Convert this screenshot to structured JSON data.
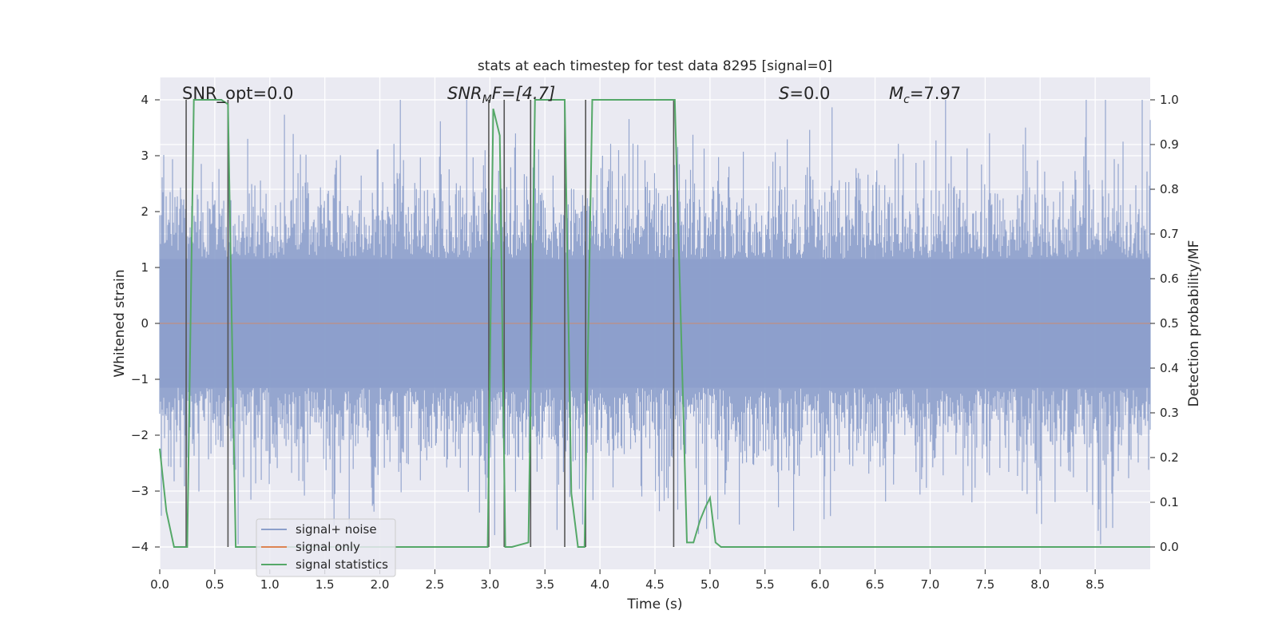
{
  "chart_data": {
    "type": "line",
    "title": "stats at each timestep for test data 8295 [signal=0]",
    "xlabel": "Time (s)",
    "ylabel": "Whitened strain",
    "y2label": "Detection probability/MF",
    "xlim": [
      0.0,
      9.0
    ],
    "ylim": [
      -4.4,
      4.4
    ],
    "y2lim": [
      -0.05,
      1.05
    ],
    "xticks": [
      "0.0",
      "0.5",
      "1.0",
      "1.5",
      "2.0",
      "2.5",
      "3.0",
      "3.5",
      "4.0",
      "4.5",
      "5.0",
      "5.5",
      "6.0",
      "6.5",
      "7.0",
      "7.5",
      "8.0",
      "8.5"
    ],
    "yticks": [
      "4",
      "3",
      "2",
      "1",
      "0",
      "−1",
      "−2",
      "−3",
      "−4"
    ],
    "y2ticks": [
      "1.0",
      "0.9",
      "0.8",
      "0.7",
      "0.6",
      "0.5",
      "0.4",
      "0.3",
      "0.2",
      "0.1",
      "0.0"
    ],
    "grid": true,
    "legend_position": "lower-left",
    "legend": [
      {
        "label": "signal+ noise",
        "color": "#8c9fcb"
      },
      {
        "label": "signal only",
        "color": "#dd8452"
      },
      {
        "label": "signal statistics",
        "color": "#55a868"
      }
    ],
    "annotations": {
      "snr_opt": "SNR_opt=0.0",
      "snr_mf_main": "SNR",
      "snr_mf_sub": "M",
      "snr_mf_rest": "F=[4.7]",
      "s_main": "S",
      "s_rest": "=0.0",
      "mc_main": "M",
      "mc_sub": "c",
      "mc_rest": "=7.97"
    },
    "series": [
      {
        "name": "signal+ noise",
        "color": "#8c9fcb",
        "description": "whitened strain noise band, approx -4 to 4",
        "seed": 8295,
        "duration": 9.0
      },
      {
        "name": "signal only",
        "color": "#dd8452",
        "x": [
          0.0,
          9.0
        ],
        "y": [
          0.0,
          0.0
        ]
      },
      {
        "name": "signal statistics",
        "color": "#55a868",
        "axis": "right",
        "x": [
          0.0,
          0.06,
          0.13,
          0.19,
          0.25,
          0.31,
          0.38,
          0.5,
          0.56,
          0.62,
          0.69,
          0.75,
          1.0,
          2.0,
          2.98,
          3.03,
          3.09,
          3.14,
          3.2,
          3.35,
          3.41,
          3.47,
          3.68,
          3.74,
          3.8,
          3.86,
          3.93,
          4.0,
          4.68,
          4.73,
          4.79,
          4.85,
          4.91,
          4.96,
          5.0,
          5.05,
          5.1,
          5.5,
          6.0,
          7.0,
          7.9,
          8.0,
          9.0
        ],
        "y": [
          0.22,
          0.08,
          0.0,
          0.0,
          0.0,
          1.0,
          1.0,
          1.0,
          1.0,
          0.99,
          0.0,
          0.0,
          0.0,
          0.0,
          0.0,
          0.98,
          0.92,
          0.0,
          0.0,
          0.01,
          1.0,
          1.0,
          1.0,
          0.12,
          0.0,
          0.0,
          1.0,
          1.0,
          1.0,
          0.55,
          0.01,
          0.01,
          0.06,
          0.09,
          0.11,
          0.01,
          0.0,
          0.0,
          0.0,
          0.0,
          0.0,
          0.0,
          0.0
        ]
      }
    ],
    "vlines": [
      {
        "x": 0.24,
        "y0": -4.0,
        "y1": 4.0
      },
      {
        "x": 0.62,
        "y0": -4.0,
        "y1": 4.0
      },
      {
        "x": 2.99,
        "y0": -4.0,
        "y1": 4.0
      },
      {
        "x": 3.13,
        "y0": -4.0,
        "y1": 4.0
      },
      {
        "x": 3.37,
        "y0": -4.0,
        "y1": 4.0
      },
      {
        "x": 3.68,
        "y0": -4.0,
        "y1": 4.0
      },
      {
        "x": 3.87,
        "y0": -4.0,
        "y1": 4.0
      },
      {
        "x": 4.67,
        "y0": -4.0,
        "y1": 4.0
      }
    ]
  }
}
